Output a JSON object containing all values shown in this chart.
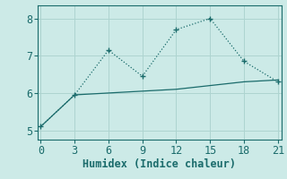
{
  "xlabel": "Humidex (Indice chaleur)",
  "line1_x": [
    0,
    3,
    6,
    9,
    12,
    15,
    18,
    21
  ],
  "line1_y": [
    5.1,
    5.95,
    7.15,
    6.45,
    7.7,
    8.0,
    6.85,
    6.3
  ],
  "line2_x": [
    0,
    3,
    6,
    9,
    12,
    15,
    18,
    21
  ],
  "line2_y": [
    5.1,
    5.95,
    6.0,
    6.05,
    6.1,
    6.2,
    6.3,
    6.35
  ],
  "line_color": "#1a6b6b",
  "bg_color": "#cceae7",
  "grid_color": "#aed4d0",
  "xlim": [
    -0.3,
    21.3
  ],
  "ylim": [
    4.75,
    8.35
  ],
  "xticks": [
    0,
    3,
    6,
    9,
    12,
    15,
    18,
    21
  ],
  "yticks": [
    5,
    6,
    7,
    8
  ],
  "tick_fontsize": 8.5,
  "xlabel_fontsize": 8.5
}
